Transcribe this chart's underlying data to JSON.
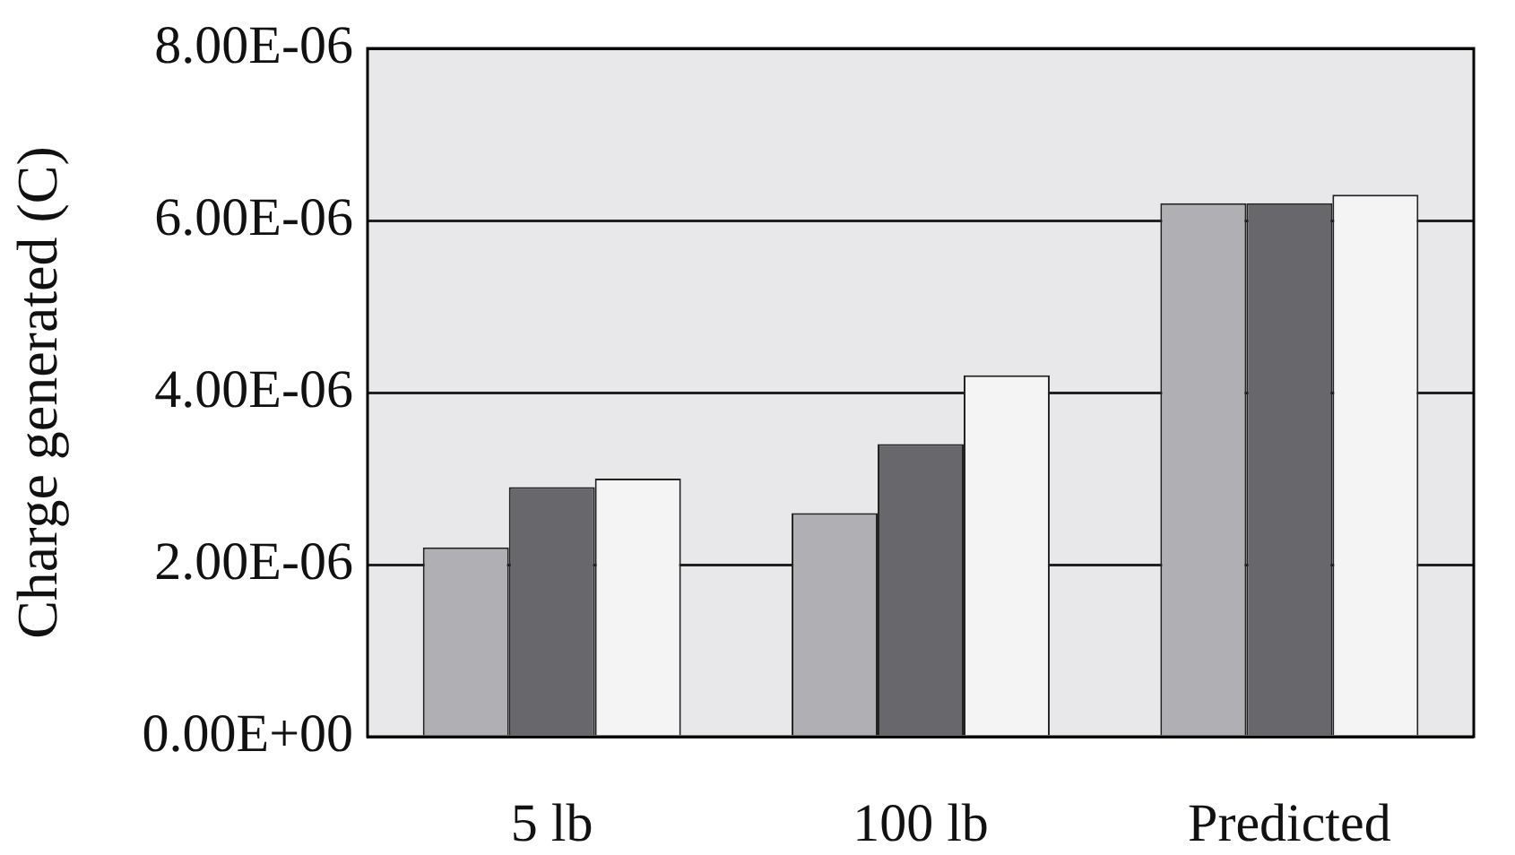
{
  "chart_data": {
    "type": "bar",
    "ylabel": "Charge generated (C)",
    "categories": [
      "5 lb",
      "100 lb",
      "Predicted"
    ],
    "series": [
      {
        "color": "#b0b0b4",
        "values": [
          2.2e-06,
          2.6e-06,
          6.2e-06
        ]
      },
      {
        "color": "#68686c",
        "values": [
          2.9e-06,
          3.4e-06,
          6.2e-06
        ]
      },
      {
        "color": "#f4f4f4",
        "values": [
          3e-06,
          4.2e-06,
          6.3e-06
        ]
      }
    ],
    "ylim": [
      0,
      8e-06
    ],
    "yticks": [
      {
        "value": 0,
        "label": "0.00E+00"
      },
      {
        "value": 2e-06,
        "label": "2.00E-06"
      },
      {
        "value": 4e-06,
        "label": "4.00E-06"
      },
      {
        "value": 6e-06,
        "label": "6.00E-06"
      },
      {
        "value": 8e-06,
        "label": "8.00E-06"
      }
    ],
    "grid": "y",
    "legend": false
  }
}
